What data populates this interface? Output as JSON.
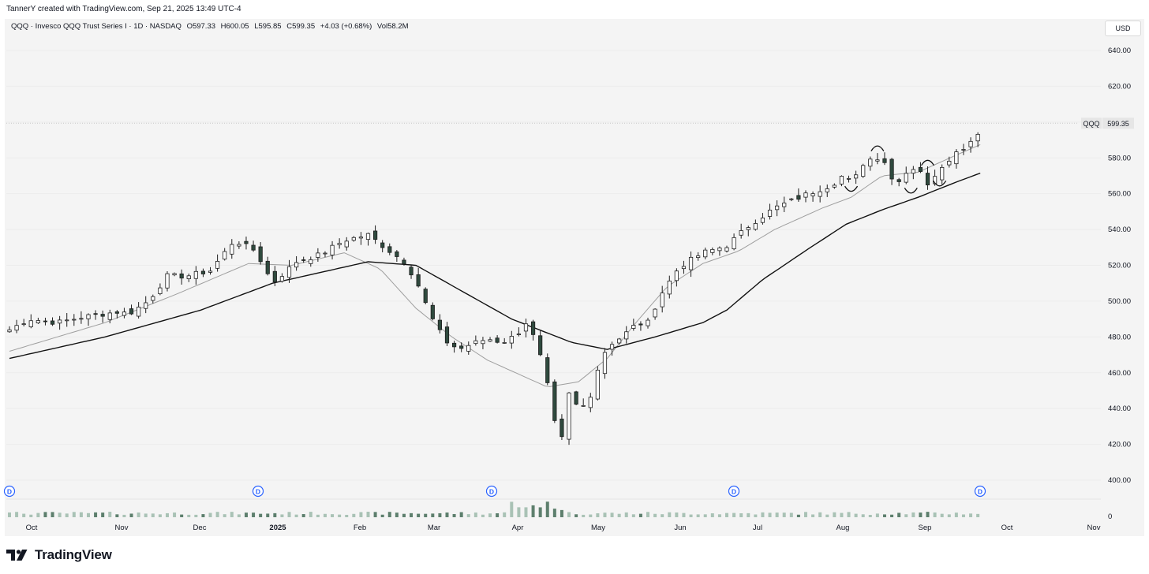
{
  "header": {
    "credit": "TannerY created with TradingView.com, Sep 21, 2025 13:49 UTC-4"
  },
  "legend": {
    "symbol": "QQQ · Invesco QQQ Trust Series I · 1D · NASDAQ",
    "open": "O597.33",
    "high": "H600.05",
    "low": "L595.85",
    "close": "C599.35",
    "change": "+4.03 (+0.68%)",
    "volume": "Vol58.2M"
  },
  "currency_button": "USD",
  "price_tag": {
    "symbol": "QQQ",
    "value": "599.35"
  },
  "brand": {
    "name": "TradingView"
  },
  "colors": {
    "up": "#ffffff",
    "down": "#2f4a3e",
    "candle_border": "#1e1e1e",
    "ma_fast": "#9e9e9e",
    "ma_slow": "#111111",
    "marker": "#2962ff",
    "background": "#f4f4f4"
  },
  "chart_data": {
    "type": "candlestick",
    "symbol": "QQQ",
    "timeframe": "1D",
    "ylim": [
      400,
      640
    ],
    "yticks": [
      "640.00",
      "620.00",
      "600.00",
      "580.00",
      "560.00",
      "540.00",
      "520.00",
      "500.00",
      "480.00",
      "460.00",
      "440.00",
      "420.00",
      "400.00"
    ],
    "xticks": [
      "Oct",
      "Nov",
      "Dec",
      "2025",
      "Feb",
      "Mar",
      "Apr",
      "May",
      "Jun",
      "Jul",
      "Aug",
      "Sep",
      "Oct",
      "Nov"
    ],
    "volume_axis_label": "0",
    "last_price": 599.35,
    "close_path_anchors": [
      [
        0,
        484
      ],
      [
        8,
        490
      ],
      [
        20,
        488
      ],
      [
        30,
        491
      ],
      [
        45,
        494
      ],
      [
        50,
        493
      ],
      [
        58,
        500
      ],
      [
        66,
        514
      ],
      [
        74,
        514
      ],
      [
        84,
        517
      ],
      [
        94,
        534
      ],
      [
        103,
        528
      ],
      [
        110,
        510
      ],
      [
        120,
        522
      ],
      [
        130,
        526
      ],
      [
        140,
        534
      ],
      [
        150,
        537
      ],
      [
        160,
        527
      ],
      [
        165,
        522
      ],
      [
        170,
        512
      ],
      [
        176,
        492
      ],
      [
        182,
        478
      ],
      [
        188,
        473
      ],
      [
        193,
        476
      ],
      [
        200,
        479
      ],
      [
        206,
        477
      ],
      [
        212,
        481
      ],
      [
        216,
        488
      ],
      [
        220,
        478
      ],
      [
        224,
        460
      ],
      [
        228,
        432
      ],
      [
        230,
        415
      ],
      [
        234,
        448
      ],
      [
        238,
        440
      ],
      [
        242,
        443
      ],
      [
        246,
        462
      ],
      [
        250,
        475
      ],
      [
        256,
        480
      ],
      [
        262,
        487
      ],
      [
        267,
        488
      ],
      [
        272,
        503
      ],
      [
        280,
        519
      ],
      [
        290,
        527
      ],
      [
        300,
        531
      ],
      [
        310,
        543
      ],
      [
        320,
        552
      ],
      [
        334,
        560
      ],
      [
        344,
        565
      ],
      [
        350,
        572
      ],
      [
        352,
        563
      ],
      [
        356,
        576
      ],
      [
        362,
        581
      ],
      [
        366,
        578
      ],
      [
        370,
        565
      ],
      [
        374,
        571
      ],
      [
        380,
        576
      ],
      [
        384,
        564
      ],
      [
        388,
        573
      ],
      [
        394,
        581
      ],
      [
        400,
        587
      ],
      [
        404,
        592
      ],
      [
        407,
        599
      ]
    ],
    "moving_averages": [
      {
        "name": "",
        "color": "#9e9e9e",
        "points": [
          [
            0,
            472
          ],
          [
            40,
            488
          ],
          [
            70,
            504
          ],
          [
            100,
            521
          ],
          [
            118,
            520
          ],
          [
            140,
            527
          ],
          [
            155,
            518
          ],
          [
            170,
            496
          ],
          [
            185,
            480
          ],
          [
            200,
            467
          ],
          [
            215,
            458
          ],
          [
            225,
            452
          ],
          [
            238,
            455
          ],
          [
            250,
            468
          ],
          [
            262,
            488
          ],
          [
            275,
            508
          ],
          [
            290,
            521
          ],
          [
            305,
            528
          ],
          [
            320,
            540
          ],
          [
            340,
            552
          ],
          [
            352,
            558
          ],
          [
            365,
            570
          ],
          [
            380,
            572
          ],
          [
            395,
            581
          ],
          [
            407,
            588
          ]
        ]
      },
      {
        "name": "",
        "color": "#111111",
        "points": [
          [
            0,
            468
          ],
          [
            40,
            480
          ],
          [
            80,
            495
          ],
          [
            110,
            510
          ],
          [
            130,
            516
          ],
          [
            150,
            522
          ],
          [
            170,
            520
          ],
          [
            190,
            505
          ],
          [
            210,
            490
          ],
          [
            235,
            477
          ],
          [
            250,
            473
          ],
          [
            270,
            480
          ],
          [
            290,
            488
          ],
          [
            300,
            495
          ],
          [
            315,
            512
          ],
          [
            335,
            530
          ],
          [
            350,
            543
          ],
          [
            365,
            551
          ],
          [
            380,
            558
          ],
          [
            395,
            566
          ],
          [
            407,
            572
          ]
        ]
      }
    ],
    "annotations": [
      "bracket",
      "arc",
      "bracket",
      "arc",
      "bracket"
    ]
  },
  "markers": [
    "D",
    "D",
    "D",
    "D",
    "D"
  ]
}
